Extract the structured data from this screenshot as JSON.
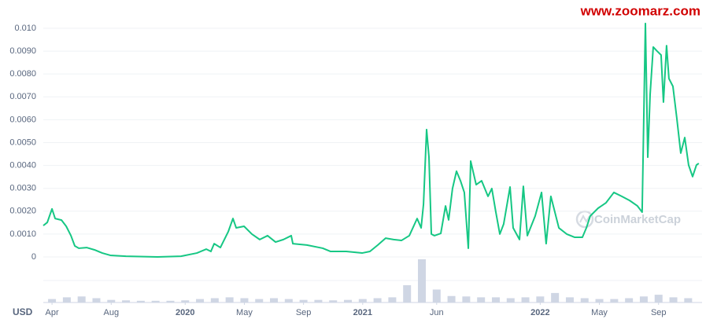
{
  "chart_data": {
    "type": "line",
    "source_note": "www.zoomarz.com",
    "watermark": "CoinMarketCap",
    "currency": "USD",
    "grid": true,
    "xlim": [
      -0.59,
      43.94
    ],
    "xticks": [
      {
        "value": 0,
        "label": "Apr"
      },
      {
        "value": 4,
        "label": "Aug"
      },
      {
        "value": 9,
        "label": "2020"
      },
      {
        "value": 13,
        "label": "May"
      },
      {
        "value": 17,
        "label": "Sep"
      },
      {
        "value": 21,
        "label": "2021"
      },
      {
        "value": 26,
        "label": "Jun"
      },
      {
        "value": 33,
        "label": "2022"
      },
      {
        "value": 37,
        "label": "May"
      },
      {
        "value": 41,
        "label": "Sep"
      }
    ],
    "ylim": [
      0,
      0.0107
    ],
    "yticks": [
      0,
      {
        "value": 0.001,
        "label": "0.0010"
      },
      {
        "value": 0.002,
        "label": "0.0020"
      },
      {
        "value": 0.003,
        "label": "0.0030"
      },
      {
        "value": 0.004,
        "label": "0.0040"
      },
      {
        "value": 0.005,
        "label": "0.0050"
      },
      {
        "value": 0.006,
        "label": "0.0060"
      },
      {
        "value": 0.007,
        "label": "0.0070"
      },
      {
        "value": 0.008,
        "label": "0.0080"
      },
      {
        "value": 0.009,
        "label": "0.0090"
      },
      {
        "value": 0.01,
        "label": "0.010"
      }
    ],
    "series": [
      {
        "color": "#16c784",
        "x": [
          -0.59,
          -0.32,
          0,
          0.21,
          0.64,
          0.96,
          1.28,
          1.54,
          1.81,
          2.34,
          2.87,
          3.4,
          3.94,
          5.0,
          7.13,
          8.72,
          9.79,
          10.43,
          10.74,
          10.96,
          11.38,
          11.91,
          12.23,
          12.45,
          12.98,
          13.51,
          14.04,
          14.57,
          15.11,
          15.64,
          16.17,
          16.28,
          17.23,
          18.3,
          18.83,
          19.89,
          20.96,
          21.49,
          22.02,
          22.55,
          23.09,
          23.62,
          24.15,
          24.68,
          24.95,
          25.11,
          25.32,
          25.48,
          25.64,
          25.85,
          26.28,
          26.6,
          26.81,
          27.07,
          27.34,
          27.61,
          27.87,
          28.14,
          28.3,
          28.67,
          29.04,
          29.47,
          29.73,
          30.0,
          30.27,
          30.53,
          30.96,
          31.17,
          31.6,
          31.86,
          32.13,
          32.66,
          33.09,
          33.4,
          33.72,
          34.26,
          34.79,
          35.32,
          35.85,
          36.12,
          36.38,
          36.91,
          37.45,
          37.98,
          38.51,
          39.04,
          39.57,
          39.89,
          40.11,
          40.27,
          40.43,
          40.64,
          40.9,
          41.17,
          41.33,
          41.54,
          41.7,
          41.97,
          42.23,
          42.5,
          42.77,
          43.03,
          43.3,
          43.56,
          43.72
        ],
        "values": [
          0.00137,
          0.00151,
          0.0021,
          0.00168,
          0.00161,
          0.00134,
          0.00093,
          0.00048,
          0.00038,
          0.00041,
          0.00031,
          0.00017,
          7e-05,
          3e-05,
          0,
          3e-05,
          0.00017,
          0.00034,
          0.00024,
          0.00058,
          0.00041,
          0.0011,
          0.00168,
          0.00127,
          0.00134,
          0.001,
          0.00076,
          0.00093,
          0.00065,
          0.00076,
          0.00093,
          0.00058,
          0.00052,
          0.00038,
          0.00024,
          0.00024,
          0.00017,
          0.00024,
          0.00052,
          0.00082,
          0.00076,
          0.00072,
          0.00093,
          0.00168,
          0.00127,
          0.0023,
          0.00557,
          0.00436,
          0.001,
          0.00093,
          0.00103,
          0.00223,
          0.00162,
          0.00299,
          0.00375,
          0.00333,
          0.00282,
          0.00038,
          0.00419,
          0.00316,
          0.00333,
          0.00265,
          0.00299,
          0.00196,
          0.001,
          0.00144,
          0.00306,
          0.00127,
          0.00076,
          0.00309,
          0.00093,
          0.00179,
          0.00282,
          0.00058,
          0.00265,
          0.00127,
          0.001,
          0.00086,
          0.00086,
          0.00127,
          0.00179,
          0.00213,
          0.00237,
          0.00282,
          0.00265,
          0.00247,
          0.00223,
          0.00196,
          0.01021,
          0.00436,
          0.00711,
          0.00918,
          0.009,
          0.00883,
          0.00677,
          0.00924,
          0.0078,
          0.00746,
          0.00608,
          0.00454,
          0.00522,
          0.00402,
          0.00351,
          0.00402,
          0.00409
        ]
      }
    ],
    "volume": {
      "color": "#cfd6e4",
      "ylim": [
        0,
        100
      ],
      "x": [
        0,
        1,
        2,
        3,
        4,
        5,
        6,
        7,
        8,
        9,
        10,
        11,
        12,
        13,
        14,
        15,
        16,
        17,
        18,
        19,
        20,
        21,
        22,
        23,
        24,
        25,
        26,
        27,
        28,
        29,
        30,
        31,
        32,
        33,
        34,
        35,
        36,
        37,
        38,
        39,
        40,
        41,
        42,
        43
      ],
      "values": [
        8,
        12,
        14,
        10,
        6,
        5,
        4,
        4,
        4,
        5,
        8,
        10,
        12,
        10,
        8,
        10,
        8,
        6,
        6,
        5,
        6,
        8,
        10,
        12,
        40,
        100,
        30,
        15,
        14,
        12,
        12,
        10,
        12,
        14,
        22,
        12,
        10,
        8,
        8,
        10,
        14,
        18,
        12,
        10
      ]
    }
  }
}
